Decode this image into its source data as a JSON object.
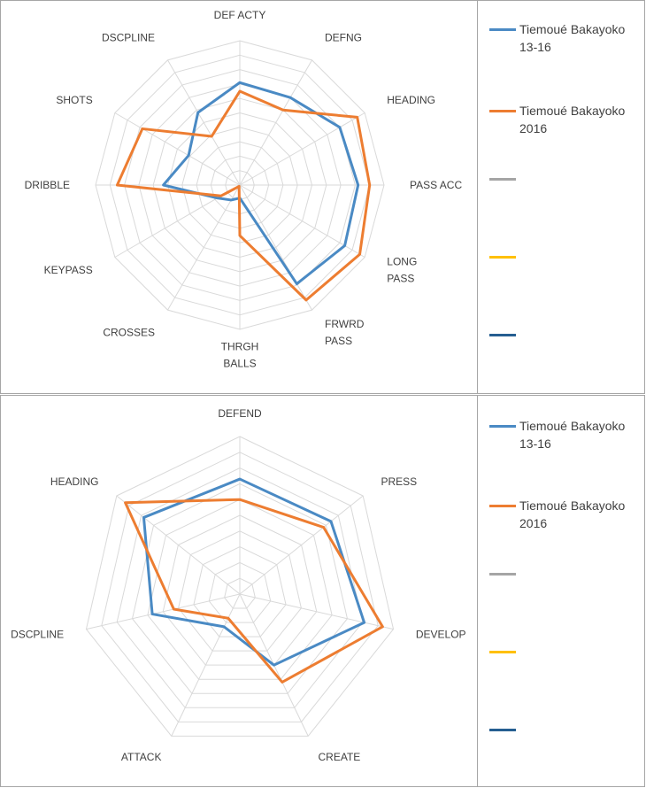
{
  "chart_data": [
    {
      "type": "radar",
      "axes": [
        "DEF ACTY",
        "DEFNG",
        "HEADING",
        "PASS ACC",
        "LONG\nPASS",
        "FRWRD\nPASS",
        "THRGH\nBALLS",
        "CROSSES",
        "KEYPASS",
        "DRIBBLE",
        "SHOTS",
        "DSCPLINE"
      ],
      "rmax": 10,
      "rings": 10,
      "series": [
        {
          "name": "Tiemoué Bakayoko 13-16",
          "color": "#4a8ac4",
          "values": [
            7.1,
            7.0,
            8.0,
            8.2,
            8.4,
            7.9,
            0.9,
            1.2,
            1.8,
            5.3,
            4.1,
            5.8
          ]
        },
        {
          "name": "Tiemoué Bakayoko 2016",
          "color": "#ed7d31",
          "values": [
            6.5,
            6.0,
            9.4,
            9.0,
            9.6,
            9.2,
            3.5,
            0.1,
            1.5,
            8.5,
            7.8,
            3.9
          ]
        },
        {
          "name": "",
          "color": "#a5a5a5",
          "values": []
        },
        {
          "name": "",
          "color": "#ffc000",
          "values": []
        },
        {
          "name": "",
          "color": "#255e91",
          "values": []
        }
      ]
    },
    {
      "type": "radar",
      "axes": [
        "DEFEND",
        "PRESS",
        "DEVELOP",
        "CREATE",
        "ATTACK",
        "DSCPLINE",
        "HEADING"
      ],
      "rmax": 10,
      "rings": 10,
      "series": [
        {
          "name": "Tiemoué Bakayoko 13-16",
          "color": "#4a8ac4",
          "values": [
            7.3,
            7.4,
            8.1,
            5.0,
            2.3,
            5.7,
            7.8
          ]
        },
        {
          "name": "Tiemoué Bakayoko 2016",
          "color": "#ed7d31",
          "values": [
            6.0,
            6.8,
            9.3,
            6.2,
            1.7,
            4.3,
            9.3
          ]
        },
        {
          "name": "",
          "color": "#a5a5a5",
          "values": []
        },
        {
          "name": "",
          "color": "#ffc000",
          "values": []
        },
        {
          "name": "",
          "color": "#255e91",
          "values": []
        }
      ]
    }
  ]
}
